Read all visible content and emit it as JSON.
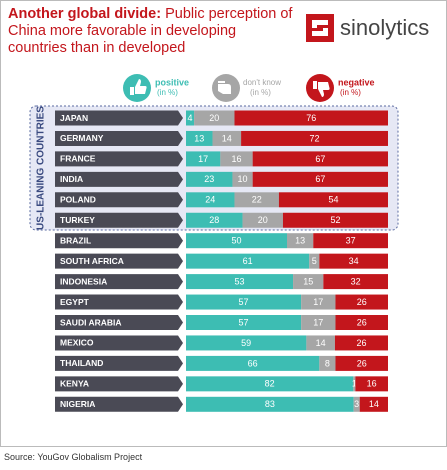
{
  "chart_data": {
    "type": "stacked-bar",
    "title_lead": "Another global divide:",
    "title": "Public perception of China more favorable in developing countries than in developed",
    "brand": "sinolytics",
    "group_label": "US-LEANING COUNTRIES",
    "legend_unit": "(in %)",
    "source": "Source: YouGov Globalism Project",
    "categories": [
      "JAPAN",
      "GERMANY",
      "FRANCE",
      "INDIA",
      "POLAND",
      "TURKEY",
      "BRAZIL",
      "SOUTH AFRICA",
      "INDONESIA",
      "EGYPT",
      "SAUDI ARABIA",
      "MEXICO",
      "THAILAND",
      "KENYA",
      "NIGERIA"
    ],
    "series": [
      {
        "name": "positive",
        "color": "#3dbdb3",
        "values": [
          4,
          13,
          17,
          23,
          24,
          28,
          50,
          61,
          53,
          57,
          57,
          59,
          66,
          82,
          83
        ]
      },
      {
        "name": "don't know",
        "color": "#a6a6a6",
        "values": [
          20,
          14,
          16,
          10,
          22,
          20,
          13,
          5,
          15,
          17,
          17,
          14,
          8,
          1,
          3
        ]
      },
      {
        "name": "negative",
        "color": "#c3161c",
        "values": [
          76,
          72,
          67,
          67,
          54,
          52,
          37,
          34,
          32,
          26,
          26,
          26,
          26,
          16,
          14
        ]
      }
    ]
  }
}
